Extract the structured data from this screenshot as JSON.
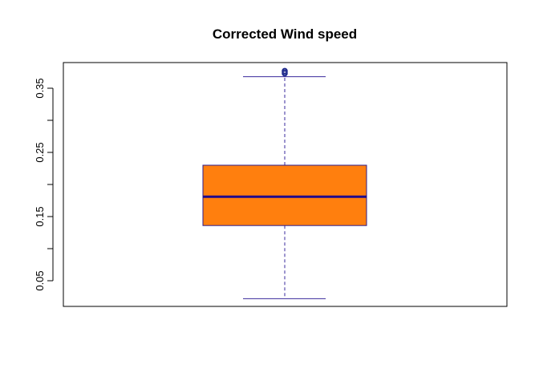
{
  "chart_data": {
    "type": "box",
    "title": "Corrected Wind speed",
    "xlabel": "",
    "ylabel": "",
    "ylim": [
      0.01,
      0.39
    ],
    "yticks": [
      0.05,
      0.1,
      0.15,
      0.2,
      0.25,
      0.3,
      0.35
    ],
    "ytick_labels": [
      "0.05",
      "",
      "0.15",
      "",
      "0.25",
      "",
      "0.35"
    ],
    "grid": false,
    "series": [
      {
        "min": 0.022,
        "q1": 0.136,
        "median": 0.181,
        "q3": 0.23,
        "max": 0.368,
        "outliers": [
          0.373,
          0.375,
          0.377
        ]
      }
    ],
    "colors": {
      "box_fill": "#FF7F0E",
      "box_border": "#2B1B8C",
      "median_line": "#1F0A8C",
      "whisker": "#3A2A9C",
      "outlier": "#1F2A8C"
    }
  }
}
